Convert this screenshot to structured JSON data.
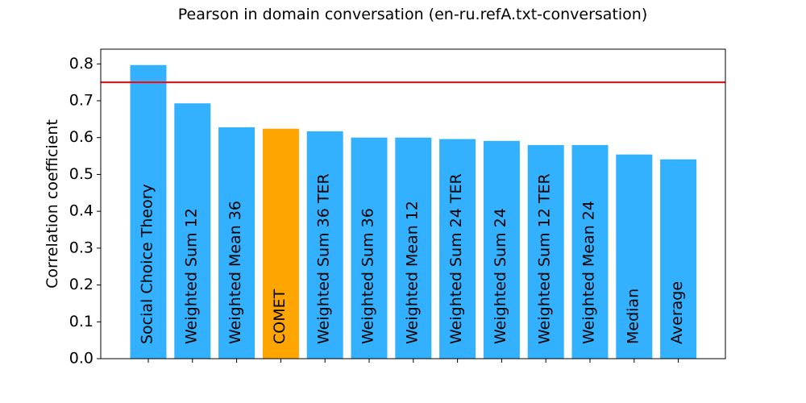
{
  "chart_data": {
    "type": "bar",
    "title": "Pearson in domain conversation (en-ru.refA.txt-conversation)",
    "xlabel": "",
    "ylabel": "Correlation coefficient",
    "ylim": [
      0,
      0.84
    ],
    "yticks": [
      "0.0",
      "0.1",
      "0.2",
      "0.3",
      "0.4",
      "0.5",
      "0.6",
      "0.7",
      "0.8"
    ],
    "categories": [
      "Social Choice Theory",
      "Weighted Sum 12",
      "Weighted Mean 36",
      "COMET",
      "Weighted Sum 36 TER",
      "Weighted Sum 36",
      "Weighted Mean 12",
      "Weighted Sum 24 TER",
      "Weighted Sum 24",
      "Weighted Sum 12 TER",
      "Weighted Mean 24",
      "Median",
      "Average"
    ],
    "values": [
      0.797,
      0.693,
      0.628,
      0.624,
      0.617,
      0.6,
      0.6,
      0.596,
      0.591,
      0.58,
      0.58,
      0.554,
      0.541
    ],
    "bar_colors": [
      "#33b1ff",
      "#33b1ff",
      "#33b1ff",
      "#ffa500",
      "#33b1ff",
      "#33b1ff",
      "#33b1ff",
      "#33b1ff",
      "#33b1ff",
      "#33b1ff",
      "#33b1ff",
      "#33b1ff",
      "#33b1ff"
    ],
    "reference_line": {
      "value": 0.75,
      "color": "#ff0000"
    },
    "grid": false,
    "legend": "none"
  }
}
